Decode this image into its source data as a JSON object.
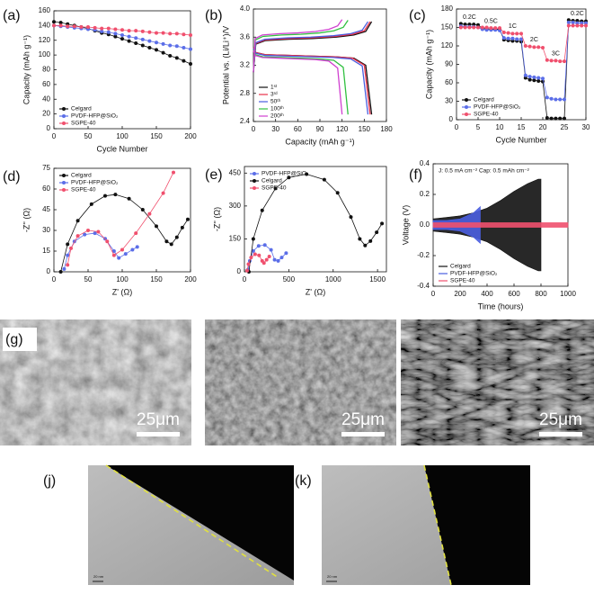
{
  "chart_data": [
    {
      "type": "line",
      "label": "(a)",
      "xlabel": "Cycle Number",
      "ylabel": "Capacity (mAh g⁻¹)",
      "markers": true,
      "legend": "lower left",
      "xlim": [
        0,
        200
      ],
      "xticks": [
        0,
        50,
        100,
        150,
        200
      ],
      "ylim": [
        0,
        160
      ],
      "yticks": [
        0,
        20,
        40,
        60,
        80,
        100,
        120,
        140,
        160
      ],
      "x": [
        0,
        10,
        20,
        30,
        40,
        50,
        60,
        70,
        80,
        90,
        100,
        110,
        120,
        130,
        140,
        150,
        160,
        170,
        180,
        190,
        200
      ],
      "series": [
        {
          "name": "Celgard",
          "color": "#111111",
          "values": [
            145,
            144,
            142,
            140,
            138,
            136,
            133,
            130,
            128,
            125,
            122,
            119,
            116,
            113,
            110,
            107,
            103,
            99,
            96,
            92,
            88
          ]
        },
        {
          "name": "PVDF-HFP@SiO₂",
          "color": "#5b6ee8",
          "values": [
            140,
            139,
            138,
            137,
            136,
            135,
            134,
            132,
            131,
            129,
            127,
            125,
            123,
            121,
            119,
            117,
            115,
            113,
            112,
            110,
            108
          ]
        },
        {
          "name": "SGPE-40",
          "color": "#f0506e",
          "values": [
            140,
            140,
            139,
            139,
            138,
            138,
            137,
            136,
            136,
            135,
            134,
            133,
            133,
            132,
            131,
            130,
            130,
            129,
            129,
            128,
            127
          ]
        }
      ]
    },
    {
      "type": "line",
      "label": "(b)",
      "xlabel": "Capacity  (mAh g⁻¹)",
      "ylabel": "Potential vs. (Li/Li⁺)/V",
      "markers": false,
      "legend": "lower left",
      "xlim": [
        0,
        180
      ],
      "xticks": [
        0,
        30,
        60,
        90,
        120,
        150,
        180
      ],
      "ylim": [
        2.4,
        4.0
      ],
      "yticks": [
        2.4,
        2.8,
        3.2,
        3.6,
        {
          "value": 4.0,
          "label": "4.0"
        }
      ],
      "series": [
        {
          "name": "1ˢᵗ",
          "color": "#111111",
          "x": [
            0,
            3.2,
            16,
            48,
            80,
            112,
            136,
            152,
            160,
            null,
            0,
            3.2,
            16,
            48,
            80,
            112,
            136,
            152,
            160
          ],
          "values": [
            3.1,
            3.5,
            3.55,
            3.57,
            3.58,
            3.6,
            3.63,
            3.68,
            3.82,
            null,
            3.45,
            3.38,
            3.35,
            3.34,
            3.33,
            3.32,
            3.3,
            3.2,
            2.5
          ]
        },
        {
          "name": "3ʳᵈ",
          "color": "#e8304a",
          "x": [
            0,
            3.2,
            15.8,
            47.4,
            79,
            110.6,
            134.3,
            150.1,
            158,
            null,
            0,
            3.2,
            15.8,
            47.4,
            79,
            110.6,
            134.3,
            150.1,
            158
          ],
          "values": [
            3.1,
            3.51,
            3.56,
            3.58,
            3.59,
            3.61,
            3.64,
            3.69,
            3.82,
            null,
            3.45,
            3.38,
            3.35,
            3.34,
            3.33,
            3.32,
            3.3,
            3.2,
            2.5
          ]
        },
        {
          "name": "50ᵗʰ",
          "color": "#4a5ee0",
          "x": [
            0,
            3.1,
            15.5,
            46.5,
            77.5,
            108.5,
            131.8,
            147.3,
            155,
            null,
            0,
            3.1,
            15.5,
            46.5,
            77.5,
            108.5,
            131.8,
            147.3,
            155
          ],
          "values": [
            3.1,
            3.52,
            3.57,
            3.59,
            3.6,
            3.62,
            3.65,
            3.7,
            3.82,
            null,
            3.44,
            3.37,
            3.34,
            3.33,
            3.32,
            3.31,
            3.29,
            3.19,
            2.5
          ]
        },
        {
          "name": "100ᵗʰ",
          "color": "#30c040",
          "x": [
            0,
            2.6,
            12.8,
            38.4,
            64,
            89.6,
            108.8,
            121.6,
            128,
            null,
            0,
            2.6,
            12.8,
            38.4,
            64,
            89.6,
            108.8,
            121.6,
            128
          ],
          "values": [
            3.1,
            3.56,
            3.61,
            3.63,
            3.64,
            3.66,
            3.69,
            3.74,
            3.84,
            null,
            3.42,
            3.35,
            3.32,
            3.31,
            3.3,
            3.29,
            3.27,
            3.17,
            2.5
          ]
        },
        {
          "name": "200ᵗʰ",
          "color": "#d040d0",
          "x": [
            0,
            2.4,
            12,
            36,
            60,
            84,
            102,
            114,
            120,
            null,
            0,
            2.4,
            12,
            36,
            60,
            84,
            102,
            114,
            120
          ],
          "values": [
            3.1,
            3.58,
            3.63,
            3.65,
            3.66,
            3.68,
            3.71,
            3.76,
            3.85,
            null,
            3.41,
            3.34,
            3.31,
            3.3,
            3.29,
            3.28,
            3.26,
            3.16,
            2.5
          ]
        }
      ]
    },
    {
      "type": "line",
      "label": "(c)",
      "xlabel": "Cycle Number",
      "ylabel": "Capacity (mAh g⁻¹)",
      "markers": true,
      "legend": "lower left",
      "annotations": [
        "0.2C",
        "0.5C",
        "1C",
        "2C",
        "3C",
        "0.2C"
      ],
      "xlim": [
        0,
        30
      ],
      "xticks": [
        0,
        5,
        10,
        15,
        20,
        25,
        30
      ],
      "ylim": [
        0,
        180
      ],
      "yticks": [
        0,
        30,
        60,
        90,
        120,
        150,
        180
      ],
      "x": [
        1,
        2,
        3,
        4,
        5,
        6,
        7,
        8,
        9,
        10,
        11,
        12,
        13,
        14,
        15,
        16,
        17,
        18,
        19,
        20,
        21,
        22,
        23,
        24,
        25,
        26,
        27,
        28,
        29,
        30
      ],
      "series": [
        {
          "name": "Celgard",
          "color": "#111111",
          "values": [
            156,
            155,
            155,
            155,
            154,
            148,
            148,
            147,
            147,
            147,
            130,
            129,
            128,
            128,
            127,
            68,
            65,
            64,
            63,
            62,
            3,
            2,
            2,
            2,
            2,
            162,
            161,
            161,
            160,
            160
          ]
        },
        {
          "name": "PVDF-HFP@SiO₂",
          "color": "#5b6ee8",
          "values": [
            152,
            151,
            151,
            151,
            150,
            147,
            146,
            146,
            146,
            145,
            133,
            132,
            132,
            131,
            131,
            72,
            70,
            69,
            68,
            67,
            36,
            34,
            33,
            33,
            33,
            158,
            158,
            157,
            157,
            157
          ]
        },
        {
          "name": "SGPE-40",
          "color": "#f0506e",
          "values": [
            150,
            150,
            150,
            150,
            150,
            150,
            150,
            149,
            149,
            149,
            142,
            141,
            140,
            140,
            140,
            120,
            119,
            118,
            118,
            117,
            97,
            96,
            96,
            95,
            95,
            153,
            153,
            153,
            153,
            153
          ]
        }
      ]
    },
    {
      "type": "line",
      "label": "(d)",
      "xlabel": "Z' (Ω)",
      "ylabel": "-Z'' (Ω)",
      "markers": true,
      "legend": "upper left",
      "xlim": [
        0,
        200
      ],
      "xticks": [
        0,
        50,
        100,
        150,
        200
      ],
      "ylim": [
        0,
        75
      ],
      "yticks": [
        0,
        15,
        30,
        45,
        60,
        75
      ],
      "series": [
        {
          "name": "Celgard",
          "color": "#111111",
          "x": [
            10,
            20,
            35,
            55,
            75,
            90,
            110,
            130,
            150,
            165,
            172,
            180,
            188,
            196
          ],
          "values": [
            0,
            20,
            37,
            49,
            55,
            56,
            53,
            45,
            33,
            22,
            20,
            25,
            32,
            38
          ]
        },
        {
          "name": "PVDF-HFP@SiO₂",
          "color": "#5b6ee8",
          "x": [
            15,
            20,
            30,
            45,
            60,
            75,
            88,
            95,
            105,
            115,
            122
          ],
          "values": [
            2,
            12,
            22,
            27,
            28,
            24,
            15,
            10,
            13,
            16,
            18
          ]
        },
        {
          "name": "SGPE-40",
          "color": "#f0506e",
          "x": [
            20,
            25,
            35,
            50,
            65,
            78,
            88,
            100,
            120,
            140,
            160,
            175
          ],
          "values": [
            5,
            17,
            26,
            30,
            29,
            22,
            12,
            16,
            28,
            42,
            57,
            72
          ]
        }
      ]
    },
    {
      "type": "line",
      "label": "(e)",
      "xlabel": "Z' (Ω)",
      "ylabel": "-Z'' (Ω)",
      "markers": true,
      "legend": "upper left",
      "xlim": [
        0,
        1600
      ],
      "xticks": [
        0,
        500,
        1000,
        1500
      ],
      "ylim": [
        0,
        480
      ],
      "yticks": [
        0,
        150,
        300,
        450
      ],
      "series": [
        {
          "name": "PVDF-HFP@SiO₂",
          "color": "#5b6ee8",
          "x": [
            40,
            60,
            100,
            160,
            230,
            300,
            340,
            380,
            420,
            470
          ],
          "values": [
            10,
            50,
            95,
            118,
            122,
            100,
            55,
            50,
            65,
            85
          ]
        },
        {
          "name": "Celgard",
          "color": "#111111",
          "x": [
            50,
            100,
            200,
            350,
            500,
            700,
            900,
            1050,
            1200,
            1300,
            1360,
            1420,
            1490,
            1550
          ],
          "values": [
            0,
            150,
            280,
            380,
            430,
            445,
            420,
            360,
            250,
            150,
            120,
            140,
            180,
            220
          ]
        },
        {
          "name": "SGPE-40",
          "color": "#f0506e",
          "x": [
            30,
            45,
            75,
            120,
            165,
            200,
            220,
            250,
            280
          ],
          "values": [
            5,
            35,
            65,
            80,
            75,
            50,
            40,
            55,
            70
          ]
        }
      ]
    },
    {
      "type": "area",
      "label": "(f)",
      "xlabel": "Time (hours)",
      "ylabel": "Voltage (V)",
      "legend": "lower left",
      "note": "J: 0.5 mA cm⁻²  Cap: 0.5 mAh cm⁻²",
      "xlim": [
        0,
        1000
      ],
      "xticks": [
        0,
        200,
        400,
        600,
        800,
        1000
      ],
      "ylim": [
        -0.4,
        0.4
      ],
      "yticks": [
        -0.4,
        -0.2,
        {
          "value": 0,
          "label": "0.0"
        },
        0.2,
        0.4
      ],
      "series": [
        {
          "name": "Celgard",
          "color": "#111111",
          "x": [
            0,
            100,
            200,
            300,
            400,
            500,
            600,
            700,
            780,
            800
          ],
          "values": [
            0.04,
            0.05,
            0.06,
            0.08,
            0.11,
            0.16,
            0.22,
            0.27,
            0.3,
            0.3
          ]
        },
        {
          "name": "PVDF-HFP@SiO₂",
          "color": "#4a5ee0",
          "x": [
            0,
            100,
            200,
            300,
            350
          ],
          "values": [
            0.03,
            0.03,
            0.04,
            0.08,
            0.12
          ]
        },
        {
          "name": "SGPE-40",
          "color": "#f0506e",
          "x": [
            0,
            500,
            1000
          ],
          "values": [
            0.015,
            0.015,
            0.015
          ]
        }
      ]
    }
  ],
  "images": [
    {
      "label": "(g)",
      "scale_bar": "25μm"
    },
    {
      "scale_bar": "25μm"
    },
    {
      "scale_bar": "25μm"
    },
    {
      "label": "(j)",
      "scale_bar": "20 nm"
    },
    {
      "label": "(k)",
      "scale_bar": "20 nm"
    }
  ]
}
